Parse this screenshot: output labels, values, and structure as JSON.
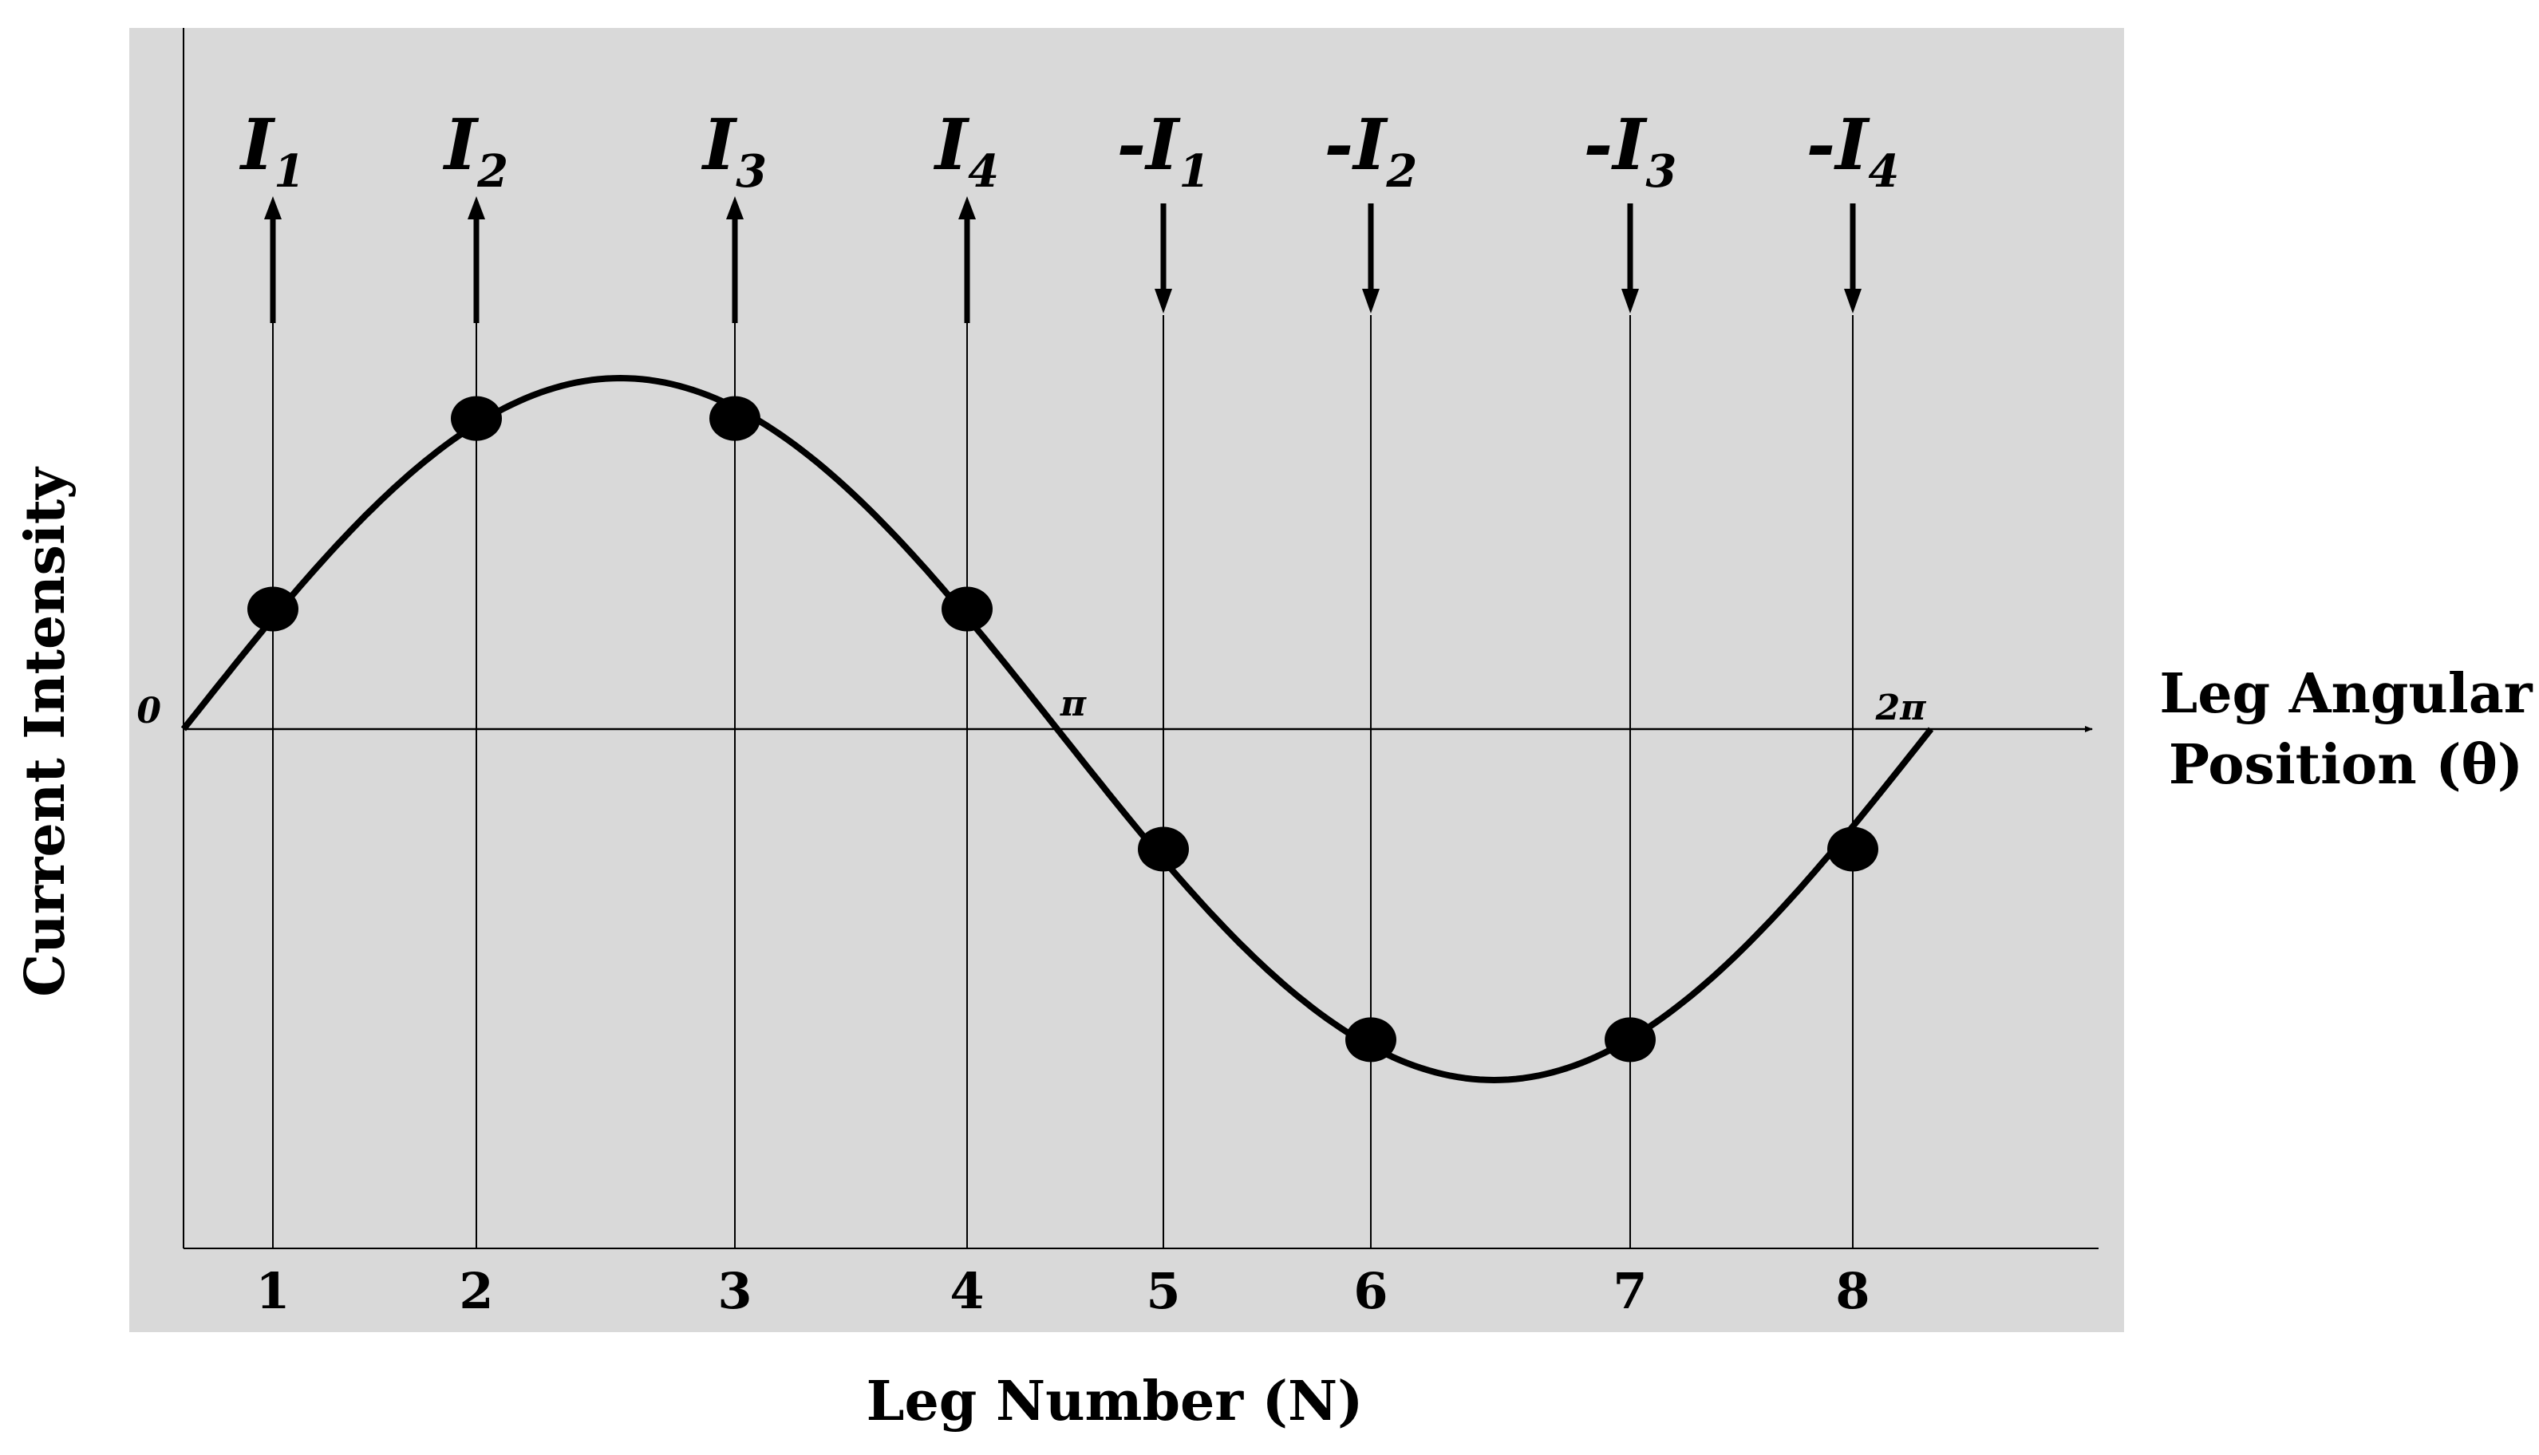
{
  "chart_data": {
    "type": "line",
    "title": "",
    "xlabel": "Leg Number (N)",
    "ylabel": "Current Intensity",
    "secondary_xlabel_line1": "Leg Angular",
    "secondary_xlabel_line2": "Position (θ)",
    "legs": [
      {
        "leg": "1",
        "label": "I",
        "sub": "1",
        "direction": "up",
        "value": 0.342
      },
      {
        "leg": "2",
        "label": "I",
        "sub": "2",
        "direction": "up",
        "value": 0.885
      },
      {
        "leg": "3",
        "label": "I",
        "sub": "3",
        "direction": "up",
        "value": 0.885
      },
      {
        "leg": "4",
        "label": "I",
        "sub": "4",
        "direction": "up",
        "value": 0.342
      },
      {
        "leg": "5",
        "label": "-I",
        "sub": "1",
        "direction": "down",
        "value": -0.342
      },
      {
        "leg": "6",
        "label": "-I",
        "sub": "2",
        "direction": "down",
        "value": -0.885
      },
      {
        "leg": "7",
        "label": "-I",
        "sub": "3",
        "direction": "down",
        "value": -0.885
      },
      {
        "leg": "8",
        "label": "-I",
        "sub": "4",
        "direction": "down",
        "value": -0.342
      }
    ],
    "angle_ticks": [
      {
        "label": "0",
        "theta": 0
      },
      {
        "label": "π",
        "theta": 3.1416
      },
      {
        "label": "2π",
        "theta": 6.2832
      }
    ],
    "ylim": [
      -1.0,
      1.0
    ],
    "grid": false,
    "colors": {
      "plot_background": "#d9d9d9",
      "curve": "#000000",
      "markers": "#000000"
    }
  }
}
